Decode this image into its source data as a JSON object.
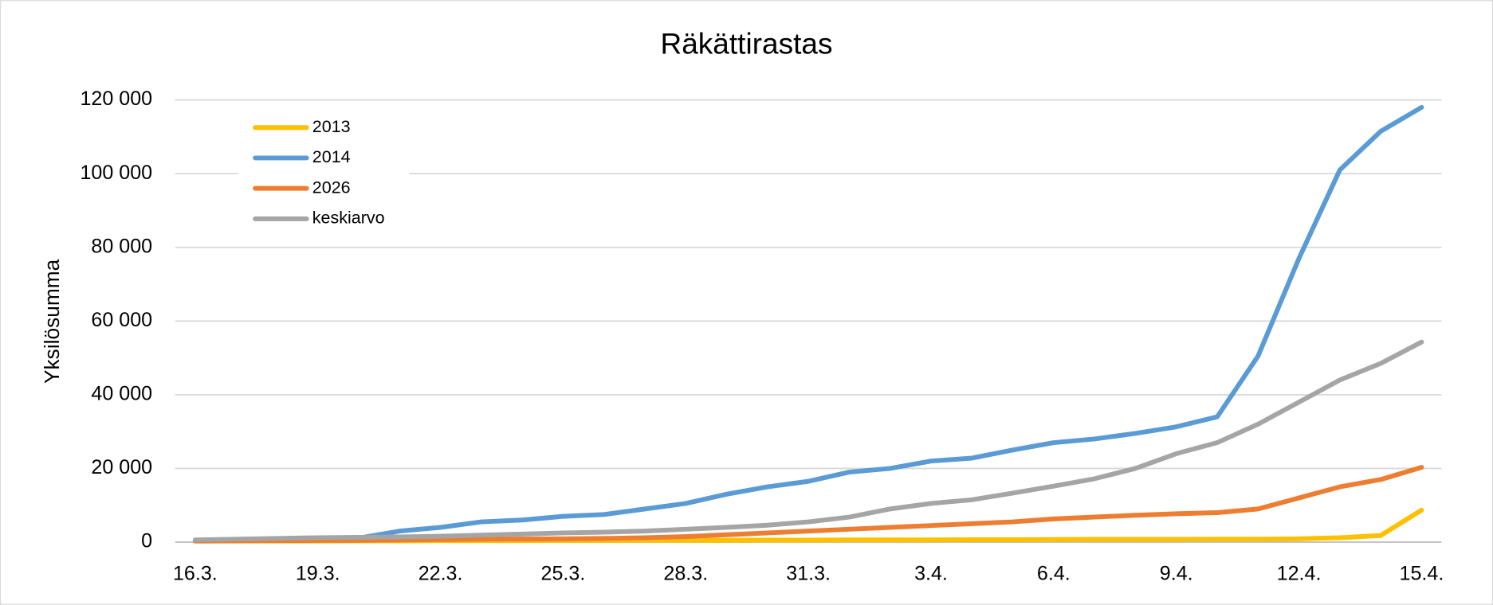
{
  "chart_data": {
    "type": "line",
    "title": "Räkättirastas",
    "ylabel": "Yksilösumma",
    "categories": [
      "16.3.",
      null,
      null,
      "19.3.",
      null,
      null,
      "22.3.",
      null,
      null,
      "25.3.",
      null,
      null,
      "28.3.",
      null,
      null,
      "31.3.",
      null,
      null,
      "3.4.",
      null,
      null,
      "6.4.",
      null,
      null,
      "9.4.",
      null,
      null,
      "12.4.",
      null,
      null,
      "15.4."
    ],
    "series": [
      {
        "name": "2013",
        "color": "#ffc000",
        "values": [
          300,
          300,
          300,
          300,
          350,
          350,
          400,
          400,
          400,
          450,
          450,
          500,
          500,
          500,
          550,
          550,
          600,
          600,
          600,
          650,
          650,
          700,
          750,
          750,
          750,
          800,
          800,
          900,
          1200,
          1800,
          8700
        ]
      },
      {
        "name": "2014",
        "color": "#5b9bd5",
        "values": [
          500,
          700,
          900,
          1000,
          1100,
          3000,
          4000,
          5500,
          6000,
          7000,
          7500,
          9000,
          10500,
          13000,
          15000,
          16500,
          19000,
          20000,
          22000,
          22800,
          25000,
          27000,
          28000,
          29500,
          31300,
          34000,
          50500,
          77000,
          101000,
          111500,
          118000
        ]
      },
      {
        "name": "2026",
        "color": "#ed7d31",
        "values": [
          300,
          350,
          400,
          450,
          500,
          600,
          700,
          800,
          850,
          900,
          1000,
          1200,
          1500,
          2000,
          2500,
          3000,
          3500,
          4000,
          4500,
          5000,
          5500,
          6300,
          6800,
          7300,
          7700,
          8000,
          9000,
          12000,
          15000,
          17000,
          20300
        ]
      },
      {
        "name": "keskiarvo",
        "color": "#a5a5a5",
        "values": [
          600,
          800,
          1000,
          1200,
          1300,
          1400,
          1600,
          1900,
          2200,
          2500,
          2700,
          3000,
          3500,
          4000,
          4600,
          5500,
          6800,
          9000,
          10500,
          11500,
          13300,
          15200,
          17200,
          20000,
          24000,
          27000,
          32000,
          38000,
          44000,
          48500,
          54300
        ]
      }
    ],
    "ylim": [
      0,
      120000
    ],
    "yticks": [
      0,
      {
        "value": 20000,
        "label": "20 000"
      },
      {
        "value": 40000,
        "label": "40 000"
      },
      {
        "value": 60000,
        "label": "60 000"
      },
      {
        "value": 80000,
        "label": "80 000"
      },
      {
        "value": 100000,
        "label": "100 000"
      },
      {
        "value": 120000,
        "label": "120 000"
      }
    ],
    "grid": true,
    "legend": "upper-left"
  }
}
